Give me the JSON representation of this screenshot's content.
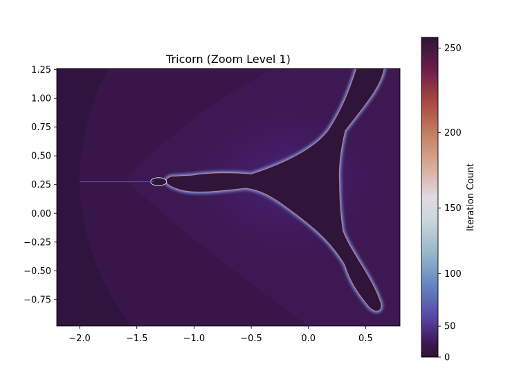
{
  "chart_data": {
    "type": "heatmap",
    "title": "Tricorn (Zoom Level 1)",
    "xlabel": "",
    "ylabel": "",
    "xlim": [
      -2.2,
      0.8
    ],
    "ylim": [
      -0.98,
      1.26
    ],
    "x_ticks": [
      {
        "value": -2.0,
        "label": "−2.0"
      },
      {
        "value": -1.5,
        "label": "−1.5"
      },
      {
        "value": -1.0,
        "label": "−1.0"
      },
      {
        "value": -0.5,
        "label": "−0.5"
      },
      {
        "value": 0.0,
        "label": "0.0"
      },
      {
        "value": 0.5,
        "label": "0.5"
      }
    ],
    "y_ticks": [
      {
        "value": 1.25,
        "label": "1.25"
      },
      {
        "value": 1.0,
        "label": "1.00"
      },
      {
        "value": 0.75,
        "label": "0.75"
      },
      {
        "value": 0.5,
        "label": "0.50"
      },
      {
        "value": 0.25,
        "label": "0.25"
      },
      {
        "value": 0.0,
        "label": "0.00"
      },
      {
        "value": -0.25,
        "label": "−0.25"
      },
      {
        "value": -0.5,
        "label": "−0.50"
      },
      {
        "value": -0.75,
        "label": "−0.75"
      }
    ],
    "max_iterations": 256,
    "colormap": "twilight_shifted",
    "colorbar": {
      "label": "Iteration Count",
      "ticks": [
        {
          "value": 0,
          "label": "0"
        },
        {
          "value": 50,
          "label": "50"
        },
        {
          "value": 100,
          "label": "100"
        },
        {
          "value": 150,
          "label": "150"
        },
        {
          "value": 200,
          "label": "200"
        },
        {
          "value": 250,
          "label": "250"
        }
      ]
    },
    "colors": {
      "interior": "#2e1539",
      "background": "#3d1852",
      "exterior_far": "#2f1440",
      "boundary_low": "#5d3fa0",
      "boundary_mid": "#6f93c6",
      "boundary_high": "#e2d9e2",
      "accent_red": "#a93f3f"
    },
    "grid": false
  }
}
